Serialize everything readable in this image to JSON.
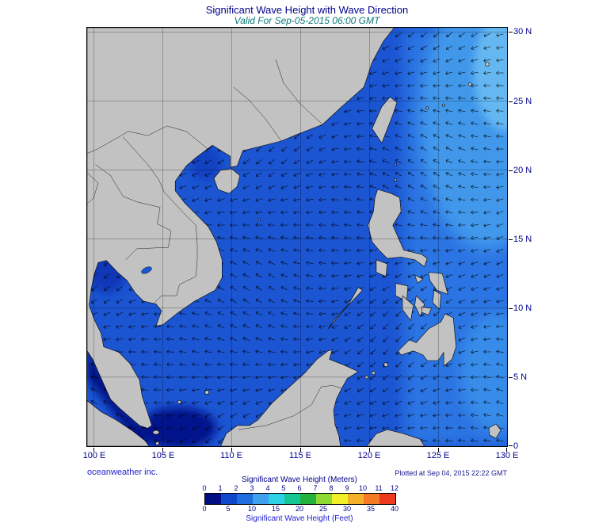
{
  "header": {
    "title": "Significant Wave Height with Wave Direction",
    "subtitle": "Valid For Sep-05-2015 06:00 GMT"
  },
  "footer": {
    "credit": "oceanweather inc.",
    "plotted": "Plotted at Sep 04, 2015 22:22 GMT"
  },
  "axes": {
    "lat": [
      "30 N",
      "25 N",
      "20 N",
      "15 N",
      "10 N",
      "5 N",
      "0"
    ],
    "lon": [
      "100 E",
      "105 E",
      "110 E",
      "115 E",
      "120 E",
      "125 E",
      "130 E"
    ]
  },
  "colorbar": {
    "meters_title": "Significant Wave Height (Meters)",
    "feet_title": "Significant Wave Height (Feet)",
    "meters_ticks": [
      0,
      1,
      2,
      3,
      4,
      5,
      6,
      7,
      8,
      9,
      10,
      11,
      12
    ],
    "feet_ticks": [
      0,
      5,
      10,
      15,
      20,
      25,
      30,
      35,
      40
    ],
    "colors": [
      "#000d85",
      "#0f47cc",
      "#1e6ee0",
      "#3fa0ef",
      "#2ed0e8",
      "#15c795",
      "#22b33c",
      "#8ed932",
      "#f2ee2a",
      "#f5b02a",
      "#f57a26",
      "#ee3a1c"
    ]
  },
  "colors": {
    "title": "#00008b",
    "subtitle": "#0b7878",
    "axis_text": "#00008b",
    "credit": "#2020d0",
    "plotted": "#1a1a8c",
    "land": "#c2c2c2",
    "ocean": "#1b55d2"
  }
}
